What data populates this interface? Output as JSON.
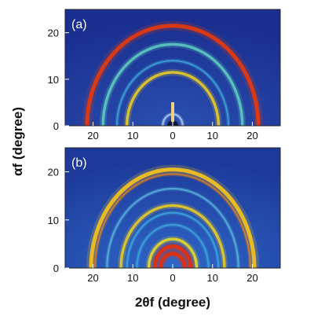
{
  "figure": {
    "y_axis_label": "αf (degree)",
    "x_axis_label": "2θf (degree)"
  },
  "chart_data": [
    {
      "type": "heatmap",
      "panel_label": "(a)",
      "x_tick_labels": [
        "20",
        "10",
        "0",
        "10",
        "20"
      ],
      "y_tick_labels": [
        "0",
        "10",
        "20"
      ],
      "xlim": [
        -27,
        27
      ],
      "ylim": [
        0,
        25
      ],
      "colormap": [
        "#1a2f8f",
        "#2fa0e0",
        "#5fd0c0",
        "#f0e020",
        "#e03010"
      ],
      "rings": [
        {
          "radius": 21.5,
          "intensity": "high",
          "color": "#e03a10"
        },
        {
          "radius": 17.5,
          "intensity": "medium",
          "color": "#5fd0c0"
        },
        {
          "radius": 14.0,
          "intensity": "low",
          "color": "#40b0e0"
        },
        {
          "radius": 11.5,
          "intensity": "medium",
          "color": "#f0d020"
        },
        {
          "radius": 2.5,
          "intensity": "low",
          "color": "#c0e0ff"
        }
      ]
    },
    {
      "type": "heatmap",
      "panel_label": "(b)",
      "x_tick_labels": [
        "20",
        "10",
        "0",
        "10",
        "20"
      ],
      "y_tick_labels": [
        "0",
        "10",
        "20"
      ],
      "xlim": [
        -27,
        27
      ],
      "ylim": [
        0,
        25
      ],
      "colormap": [
        "#1a2f8f",
        "#2fa0e0",
        "#5fd0c0",
        "#f0e020",
        "#e03010"
      ],
      "rings": [
        {
          "radius": 20.5,
          "intensity": "high",
          "color": "#f0c020"
        },
        {
          "radius": 19.5,
          "intensity": "low",
          "color": "#e08020"
        },
        {
          "radius": 16.5,
          "intensity": "low",
          "color": "#60c0e0"
        },
        {
          "radius": 13.0,
          "intensity": "medium",
          "color": "#f0d020"
        },
        {
          "radius": 11.5,
          "intensity": "low",
          "color": "#40b0e0"
        },
        {
          "radius": 9.0,
          "intensity": "low",
          "color": "#40b0e0"
        },
        {
          "radius": 6.0,
          "intensity": "medium",
          "color": "#f0e020"
        },
        {
          "radius": 4.5,
          "intensity": "high",
          "color": "#e03010"
        },
        {
          "radius": 3.0,
          "intensity": "high",
          "color": "#e03010"
        }
      ]
    }
  ]
}
